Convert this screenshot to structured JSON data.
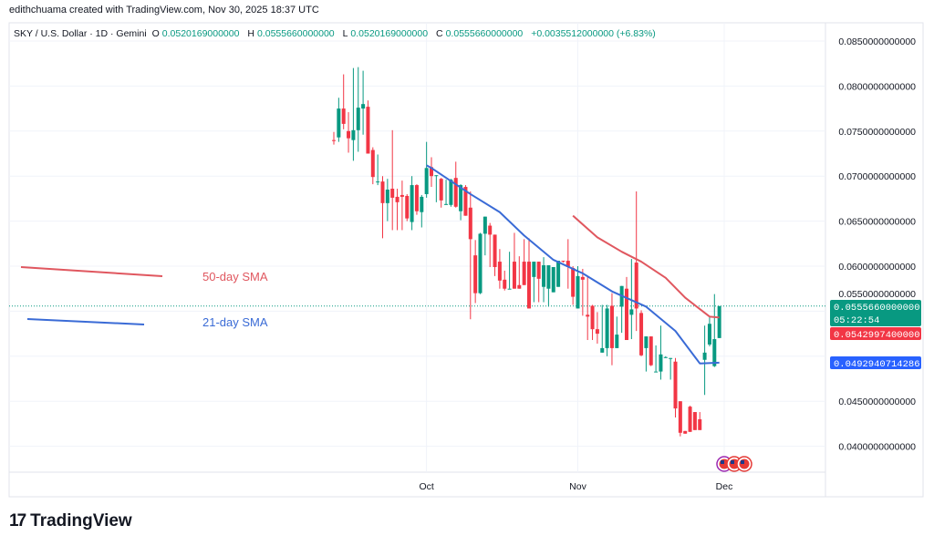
{
  "credit": "edithchuama created with TradingView.com, Nov 30, 2025 18:37 UTC",
  "legend": {
    "symbol": "SKY / U.S. Dollar · 1D · Gemini",
    "o_label": "O",
    "o": "0.0520169000000",
    "h_label": "H",
    "h": "0.0555660000000",
    "l_label": "L",
    "l": "0.0520169000000",
    "c_label": "C",
    "c": "0.0555660000000",
    "change": "+0.0035512000000 (+6.83%)"
  },
  "logo": "TradingView",
  "colors": {
    "up": "#089981",
    "down": "#f23645",
    "sma21": "#3a6bd6",
    "sma50": "#e0575f"
  },
  "price_labels": {
    "last": "0.0555660000000",
    "countdown": "05:22:54",
    "sma50": "0.0542997400000",
    "sma21": "0.0492940714286"
  },
  "annotations": {
    "sma50": "50-day SMA",
    "sma21": "21-day SMA"
  },
  "event_icons": [
    "us-flag-icon",
    "us-flag-icon",
    "us-flag-icon"
  ],
  "chart_data": {
    "type": "candlestick",
    "interval": "1D",
    "ylim": [
      0.0365,
      0.088
    ],
    "y_ticks": [
      "0.0850000000000",
      "0.0800000000000",
      "0.0750000000000",
      "0.0700000000000",
      "0.0650000000000",
      "0.0600000000000",
      "0.0550000000000",
      "0.0500000000000",
      "0.0450000000000",
      "0.0400000000000"
    ],
    "y_tick_values": [
      0.085,
      0.08,
      0.075,
      0.07,
      0.065,
      0.06,
      0.055,
      0.05,
      0.045,
      0.04
    ],
    "x_ticks": [
      {
        "label": "Oct",
        "date": "Oct 1"
      },
      {
        "label": "Nov",
        "date": "Nov 1"
      },
      {
        "label": "Dec",
        "date": "Dec 1"
      }
    ],
    "grid": true,
    "candles_fields": [
      "date",
      "open",
      "high",
      "low",
      "close"
    ],
    "candles": [
      [
        "Sep 12",
        0.074,
        0.0749,
        0.0735,
        0.0739
      ],
      [
        "Sep 13",
        0.0743,
        0.0787,
        0.0738,
        0.0775
      ],
      [
        "Sep 14",
        0.0775,
        0.0813,
        0.0752,
        0.0758
      ],
      [
        "Sep 15",
        0.075,
        0.0771,
        0.0726,
        0.0742
      ],
      [
        "Sep 16",
        0.074,
        0.082,
        0.0717,
        0.0751
      ],
      [
        "Sep 17",
        0.0751,
        0.0821,
        0.0727,
        0.0776
      ],
      [
        "Sep 18",
        0.0775,
        0.0817,
        0.0746,
        0.078
      ],
      [
        "Sep 19",
        0.0777,
        0.0784,
        0.0725,
        0.0725
      ],
      [
        "Sep 20",
        0.0729,
        0.0732,
        0.0691,
        0.0699
      ],
      [
        "Sep 21",
        0.0693,
        0.0724,
        0.069,
        0.0694
      ],
      [
        "Sep 22",
        0.0694,
        0.07,
        0.0631,
        0.067
      ],
      [
        "Sep 23",
        0.067,
        0.0697,
        0.065,
        0.0685
      ],
      [
        "Sep 24",
        0.0686,
        0.0751,
        0.064,
        0.0676
      ],
      [
        "Sep 25",
        0.0677,
        0.0686,
        0.064,
        0.0671
      ],
      [
        "Sep 26",
        0.0679,
        0.0695,
        0.064,
        0.0677
      ],
      [
        "Sep 27",
        0.0678,
        0.068,
        0.065,
        0.0653
      ],
      [
        "Sep 28",
        0.0649,
        0.07,
        0.064,
        0.069
      ],
      [
        "Sep 29",
        0.069,
        0.0691,
        0.0657,
        0.0661
      ],
      [
        "Sep 30",
        0.066,
        0.0679,
        0.0643,
        0.0677
      ],
      [
        "Oct 1",
        0.068,
        0.0738,
        0.0676,
        0.0709
      ],
      [
        "Oct 2",
        0.071,
        0.0721,
        0.0688,
        0.07
      ],
      [
        "Oct 3",
        0.07,
        0.0701,
        0.0671,
        0.0701
      ],
      [
        "Oct 4",
        0.0697,
        0.0698,
        0.0665,
        0.0673
      ],
      [
        "Oct 5",
        0.0669,
        0.0696,
        0.0668,
        0.0669
      ],
      [
        "Oct 6",
        0.0668,
        0.0697,
        0.0666,
        0.0696
      ],
      [
        "Oct 7",
        0.0698,
        0.0716,
        0.0665,
        0.0666
      ],
      [
        "Oct 8",
        0.0661,
        0.0691,
        0.0651,
        0.069
      ],
      [
        "Oct 9",
        0.0688,
        0.069,
        0.0656,
        0.0656
      ],
      [
        "Oct 10",
        0.0665,
        0.0683,
        0.0541,
        0.063
      ],
      [
        "Oct 11",
        0.0612,
        0.0629,
        0.0559,
        0.057
      ],
      [
        "Oct 12",
        0.057,
        0.0637,
        0.0569,
        0.0636
      ],
      [
        "Oct 13",
        0.0636,
        0.0655,
        0.0612,
        0.0655
      ],
      [
        "Oct 14",
        0.0645,
        0.0648,
        0.0599,
        0.0635
      ],
      [
        "Oct 15",
        0.0635,
        0.0635,
        0.0589,
        0.0599
      ],
      [
        "Oct 16",
        0.0605,
        0.0619,
        0.0575,
        0.0584
      ],
      [
        "Oct 17",
        0.0585,
        0.0595,
        0.0573,
        0.0575
      ],
      [
        "Oct 18",
        0.0575,
        0.0616,
        0.0575,
        0.0575
      ],
      [
        "Oct 19",
        0.0605,
        0.0637,
        0.0575,
        0.0575
      ],
      [
        "Oct 20",
        0.0579,
        0.0611,
        0.0575,
        0.0575
      ],
      [
        "Oct 21",
        0.0605,
        0.063,
        0.0579,
        0.0579
      ],
      [
        "Oct 22",
        0.0605,
        0.0631,
        0.0553,
        0.0553
      ],
      [
        "Oct 23",
        0.0588,
        0.0605,
        0.056,
        0.0605
      ],
      [
        "Oct 24",
        0.0605,
        0.0605,
        0.056,
        0.0586
      ],
      [
        "Oct 25",
        0.0577,
        0.061,
        0.056,
        0.0601
      ],
      [
        "Oct 26",
        0.0575,
        0.0601,
        0.0555,
        0.0601
      ],
      [
        "Oct 27",
        0.0571,
        0.0599,
        0.0571,
        0.0599
      ],
      [
        "Oct 28",
        0.0577,
        0.0606,
        0.0577,
        0.0606
      ],
      [
        "Oct 29",
        0.0606,
        0.0606,
        0.0604,
        0.0605
      ],
      [
        "Oct 30",
        0.0606,
        0.063,
        0.0575,
        0.0599
      ],
      [
        "Oct 31",
        0.0598,
        0.06,
        0.0557,
        0.0566
      ],
      [
        "Nov 1",
        0.0553,
        0.06,
        0.0553,
        0.0589
      ],
      [
        "Nov 2",
        0.0588,
        0.0597,
        0.0545,
        0.0585
      ],
      [
        "Nov 3",
        0.0546,
        0.0588,
        0.0518,
        0.0544
      ],
      [
        "Nov 4",
        0.0556,
        0.0557,
        0.0518,
        0.053
      ],
      [
        "Nov 5",
        0.053,
        0.0549,
        0.0514,
        0.0525
      ],
      [
        "Nov 6",
        0.0504,
        0.0557,
        0.0504,
        0.0509
      ],
      [
        "Nov 7",
        0.0509,
        0.0557,
        0.05,
        0.0553
      ],
      [
        "Nov 8",
        0.0556,
        0.057,
        0.049,
        0.0509
      ],
      [
        "Nov 9",
        0.0509,
        0.0544,
        0.0509,
        0.0524
      ],
      [
        "Nov 10",
        0.0555,
        0.0578,
        0.0526,
        0.0578
      ],
      [
        "Nov 11",
        0.0575,
        0.0588,
        0.0518,
        0.0518
      ],
      [
        "Nov 12",
        0.0546,
        0.0608,
        0.0519,
        0.0552
      ],
      [
        "Nov 13",
        0.0604,
        0.0683,
        0.0528,
        0.0553
      ],
      [
        "Nov 14",
        0.0548,
        0.0551,
        0.05,
        0.0501
      ],
      [
        "Nov 15",
        0.0509,
        0.0522,
        0.0483,
        0.0522
      ],
      [
        "Nov 16",
        0.0522,
        0.0522,
        0.0489,
        0.049
      ],
      [
        "Nov 17",
        0.0483,
        0.0512,
        0.0483,
        0.0483
      ],
      [
        "Nov 18",
        0.0483,
        0.0534,
        0.0474,
        0.0502
      ],
      [
        "Nov 19",
        0.0499,
        0.05,
        0.0498,
        0.0499
      ],
      [
        "Nov 20",
        0.0498,
        0.0498,
        0.0474,
        0.0498
      ],
      [
        "Nov 21",
        0.0494,
        0.0498,
        0.0432,
        0.0442
      ],
      [
        "Nov 22",
        0.045,
        0.045,
        0.0411,
        0.0415
      ],
      [
        "Nov 23",
        0.0417,
        0.0417,
        0.0414,
        0.0414
      ],
      [
        "Nov 24",
        0.0444,
        0.0445,
        0.0416,
        0.0416
      ],
      [
        "Nov 25",
        0.0438,
        0.0438,
        0.0418,
        0.0418
      ],
      [
        "Nov 26",
        0.043,
        0.0438,
        0.0418,
        0.0418
      ],
      [
        "Nov 27",
        0.0496,
        0.0534,
        0.0457,
        0.0504
      ],
      [
        "Nov 28",
        0.0513,
        0.0544,
        0.0511,
        0.0536
      ],
      [
        "Nov 29",
        0.0489,
        0.0569,
        0.0488,
        0.0519
      ],
      [
        "Nov 30",
        0.0520169,
        0.055566,
        0.0520169,
        0.055566
      ]
    ],
    "series": [
      {
        "name": "21-day SMA",
        "points": [
          [
            "Oct 1",
            0.0712
          ],
          [
            "Oct 2",
            0.0709
          ],
          [
            "Oct 10",
            0.068
          ],
          [
            "Oct 16",
            0.066
          ],
          [
            "Oct 21",
            0.0634
          ],
          [
            "Oct 27",
            0.0607
          ],
          [
            "Nov 2",
            0.0592
          ],
          [
            "Nov 8",
            0.0572
          ],
          [
            "Nov 15",
            0.0555
          ],
          [
            "Nov 21",
            0.0528
          ],
          [
            "Nov 26",
            0.0492
          ],
          [
            "Nov 30",
            0.04929
          ]
        ]
      },
      {
        "name": "50-day SMA",
        "points": [
          [
            "Oct 31",
            0.0656
          ],
          [
            "Nov 5",
            0.0632
          ],
          [
            "Nov 10",
            0.0616
          ],
          [
            "Nov 14",
            0.0605
          ],
          [
            "Nov 19",
            0.0587
          ],
          [
            "Nov 23",
            0.0565
          ],
          [
            "Nov 28",
            0.0544
          ],
          [
            "Nov 30",
            0.0543
          ]
        ]
      }
    ]
  }
}
